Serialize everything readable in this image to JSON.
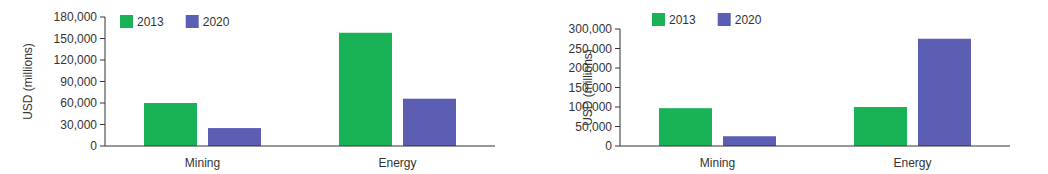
{
  "chart_data": [
    {
      "type": "bar",
      "y_label": "USD (millions)",
      "categories": [
        "Mining",
        "Energy"
      ],
      "series": [
        {
          "name": "2013",
          "color": "#19b257",
          "values": [
            60000,
            158000
          ]
        },
        {
          "name": "2020",
          "color": "#5b5eb3",
          "values": [
            25000,
            66000
          ]
        }
      ],
      "ylim": [
        0,
        180000
      ],
      "yticks": [
        0,
        {
          "value": 30000,
          "label": "30,000"
        },
        {
          "value": 60000,
          "label": "60,000"
        },
        {
          "value": 90000,
          "label": "90,000"
        },
        {
          "value": 120000,
          "label": "120,000"
        },
        {
          "value": 150000,
          "label": "150,000"
        },
        {
          "value": 180000,
          "label": "180,000"
        }
      ],
      "legend": "upper left",
      "grid": false
    },
    {
      "type": "bar",
      "y_label": "USD (millions)",
      "categories": [
        "Mining",
        "Energy"
      ],
      "series": [
        {
          "name": "2013",
          "color": "#19b257",
          "values": [
            97000,
            100000
          ]
        },
        {
          "name": "2020",
          "color": "#5b5eb3",
          "values": [
            25000,
            275000
          ]
        }
      ],
      "ylim": [
        0,
        300000
      ],
      "yticks": [
        0,
        {
          "value": 50000,
          "label": "50,000"
        },
        {
          "value": 100000,
          "label": "100,000"
        },
        {
          "value": 150000,
          "label": "150,000"
        },
        {
          "value": 200000,
          "label": "200,000"
        },
        {
          "value": 250000,
          "label": "250,000"
        },
        {
          "value": 300000,
          "label": "300,000"
        }
      ],
      "legend": "upper left",
      "grid": false
    }
  ]
}
